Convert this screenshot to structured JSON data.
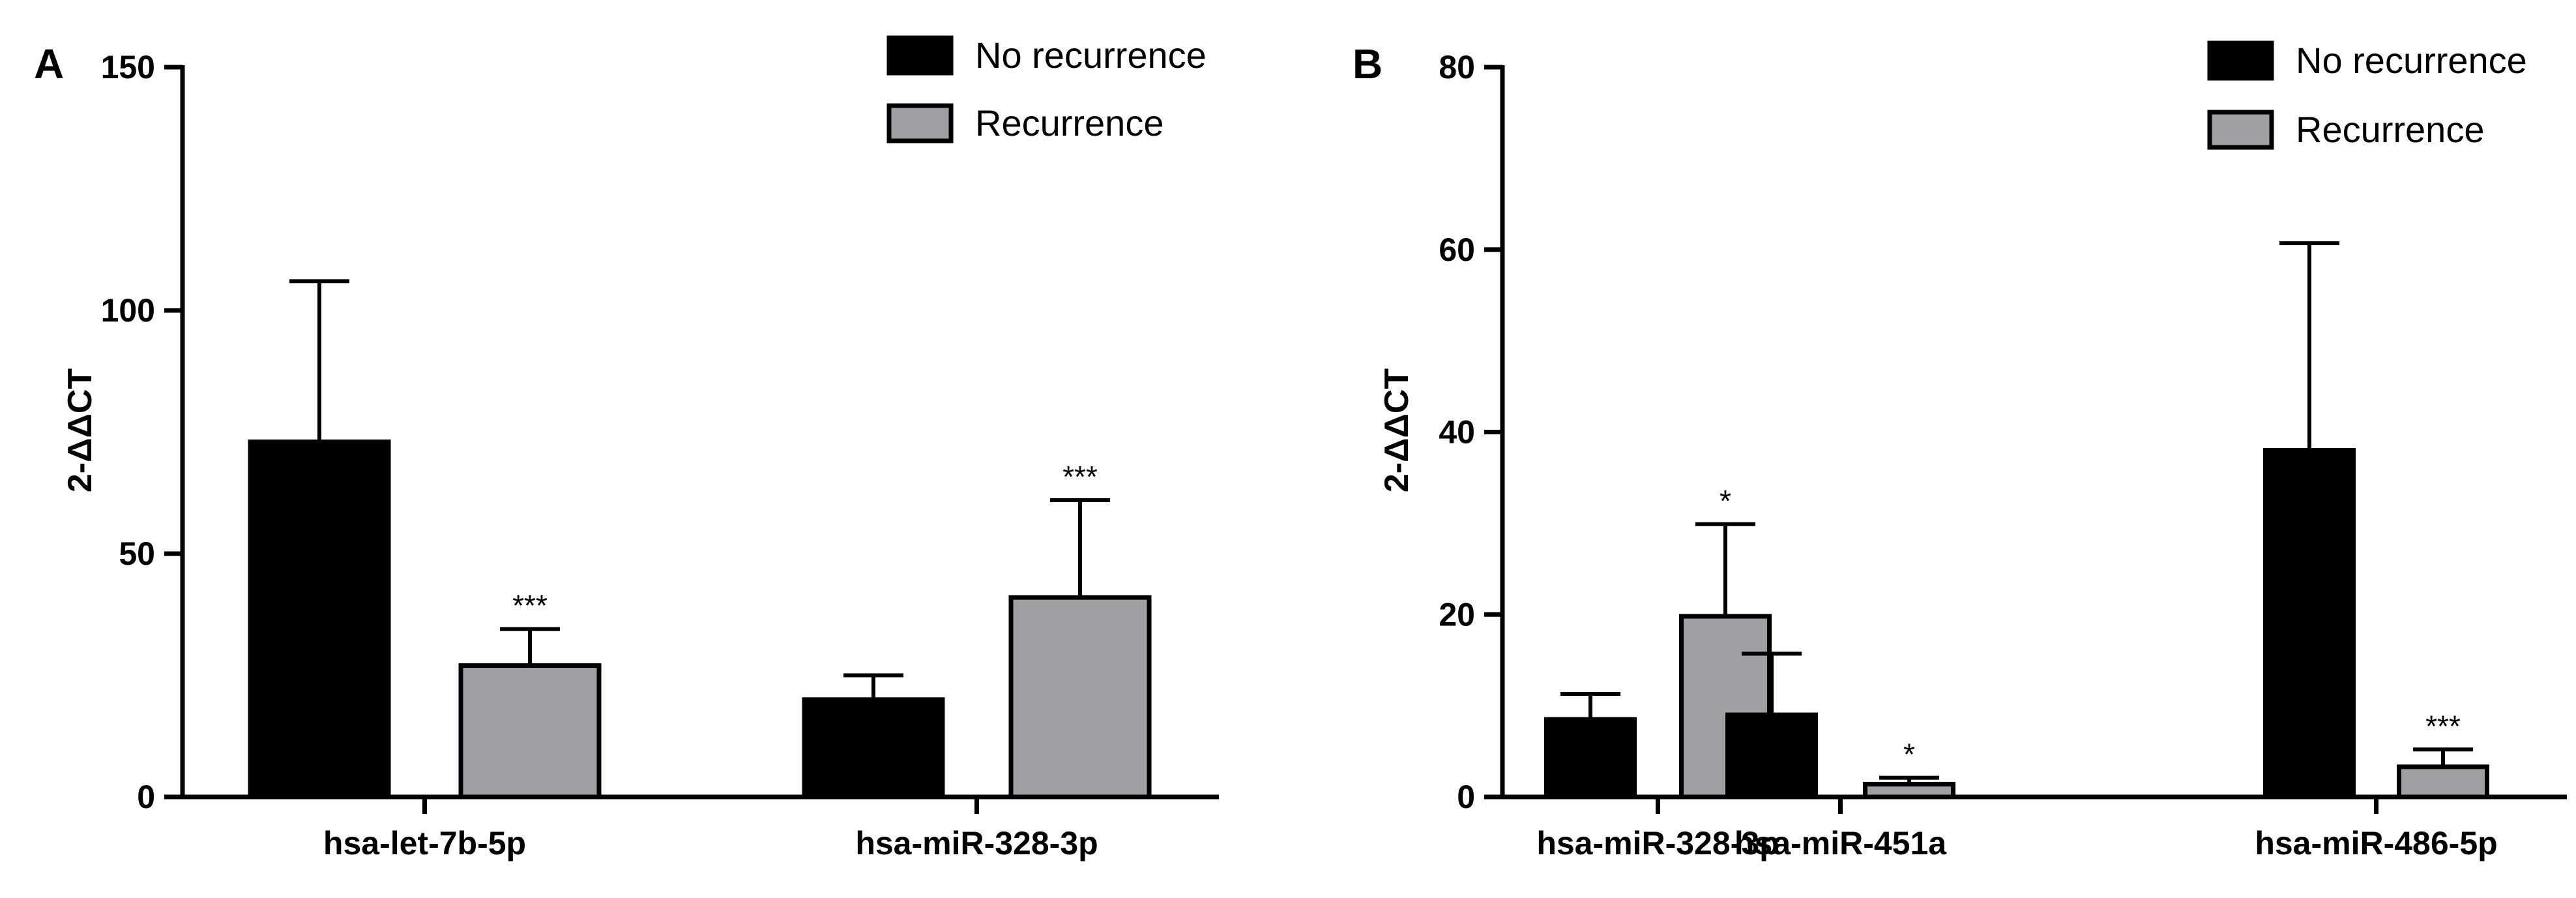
{
  "chart_data": [
    {
      "type": "bar",
      "panel_label": "A",
      "ylabel": "2-ΔΔCT",
      "ylim": [
        0,
        150
      ],
      "yticks": [
        0,
        50,
        100,
        150
      ],
      "categories": [
        "hsa-let-7b-5p",
        "hsa-miR-328-3p"
      ],
      "series": [
        {
          "name": "No recurrence",
          "color": "#000000",
          "values": [
            73,
            20
          ],
          "errors": [
            33,
            5
          ]
        },
        {
          "name": "Recurrence",
          "color": "#a0a0a4",
          "values": [
            27,
            41
          ],
          "errors": [
            7.5,
            20
          ]
        }
      ],
      "significance": [
        {
          "category": "hsa-let-7b-5p",
          "series": "Recurrence",
          "label": "***"
        },
        {
          "category": "hsa-miR-328-3p",
          "series": "Recurrence",
          "label": "***"
        }
      ],
      "legend": [
        "No recurrence",
        "Recurrence"
      ],
      "legend_position": "top-right"
    },
    {
      "type": "bar",
      "panel_label": "B",
      "ylabel": "2-ΔΔCT",
      "ylim": [
        0,
        80
      ],
      "yticks": [
        0,
        20,
        40,
        60,
        80
      ],
      "categories": [
        "hsa-miR-328-3p",
        "hsa-miR-451a",
        "hsa-miR-486-5p"
      ],
      "series": [
        {
          "name": "No recurrence",
          "color": "#000000",
          "values": [
            8.5,
            9,
            38
          ],
          "errors": [
            2.8,
            6.7,
            22.7
          ]
        },
        {
          "name": "Recurrence",
          "color": "#a0a0a4",
          "values": [
            19.8,
            1.4,
            3.3
          ],
          "errors": [
            10.1,
            0.7,
            1.9
          ]
        }
      ],
      "significance": [
        {
          "category": "hsa-miR-328-3p",
          "series": "Recurrence",
          "label": "*"
        },
        {
          "category": "hsa-miR-451a",
          "series": "Recurrence",
          "label": "*"
        },
        {
          "category": "hsa-miR-486-5p",
          "series": "Recurrence",
          "label": "***"
        }
      ],
      "legend": [
        "No recurrence",
        "Recurrence"
      ],
      "legend_position": "top-right"
    }
  ]
}
